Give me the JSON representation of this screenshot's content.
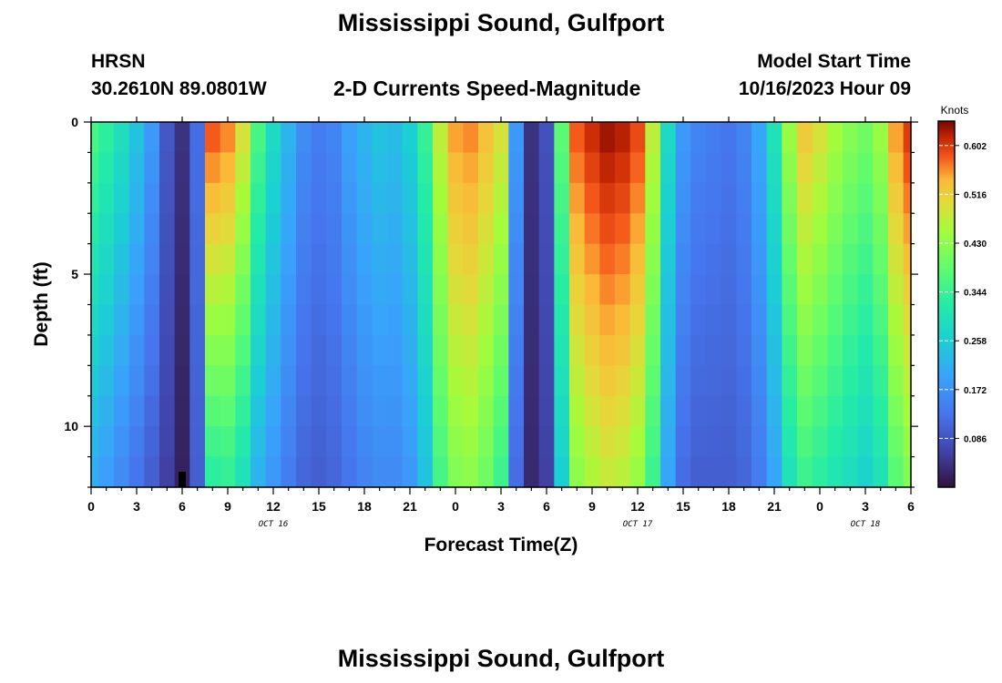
{
  "page": {
    "title": "Mississippi Sound, Gulfport",
    "title_repeat": "Mississippi Sound, Gulfport",
    "station_id": "HRSN",
    "station_coords": "30.2610N  89.0801W",
    "subtitle": "2-D Currents Speed-Magnitude",
    "model_label": "Model Start Time",
    "model_time": "10/16/2023 Hour 09"
  },
  "chart_data": {
    "type": "heatmap",
    "title": "2-D Currents Speed-Magnitude",
    "xlabel": "Forecast Time(Z)",
    "ylabel": "Depth (ft)",
    "x_range_hours": [
      0,
      54
    ],
    "y_range_ft": [
      0,
      12
    ],
    "y_inverted": true,
    "x_ticks": [
      {
        "hour": 0,
        "label": "0"
      },
      {
        "hour": 3,
        "label": "3"
      },
      {
        "hour": 6,
        "label": "6"
      },
      {
        "hour": 9,
        "label": "9"
      },
      {
        "hour": 12,
        "label": "12"
      },
      {
        "hour": 15,
        "label": "15"
      },
      {
        "hour": 18,
        "label": "18"
      },
      {
        "hour": 21,
        "label": "21"
      },
      {
        "hour": 24,
        "label": "0"
      },
      {
        "hour": 27,
        "label": "3"
      },
      {
        "hour": 30,
        "label": "6"
      },
      {
        "hour": 33,
        "label": "9"
      },
      {
        "hour": 36,
        "label": "12"
      },
      {
        "hour": 39,
        "label": "15"
      },
      {
        "hour": 42,
        "label": "18"
      },
      {
        "hour": 45,
        "label": "21"
      },
      {
        "hour": 48,
        "label": "0"
      },
      {
        "hour": 51,
        "label": "3"
      },
      {
        "hour": 54,
        "label": "6"
      }
    ],
    "date_labels": [
      {
        "hour": 12,
        "label": "OCT 16"
      },
      {
        "hour": 36,
        "label": "OCT 17"
      },
      {
        "hour": 51,
        "label": "OCT 18"
      }
    ],
    "y_ticks": [
      {
        "depth": 0,
        "label": "0"
      },
      {
        "depth": 5,
        "label": "5"
      },
      {
        "depth": 10,
        "label": "10"
      }
    ],
    "colorbar": {
      "unit": "Knots",
      "min": 0.0,
      "max": 0.645,
      "ticks": [
        "0.602",
        "0.516",
        "0.430",
        "0.344",
        "0.258",
        "0.172",
        "0.086"
      ],
      "tick_values": [
        0.602,
        0.516,
        0.43,
        0.344,
        0.258,
        0.172,
        0.086
      ]
    },
    "series": [
      {
        "name": "speed_knots",
        "description": "Current speed at each forecast hour (columns) and depth layer (rows, surface to bottom)",
        "x_hours": [
          0,
          1,
          2,
          3,
          4,
          5,
          6,
          7,
          8,
          9,
          10,
          11,
          12,
          13,
          14,
          15,
          16,
          17,
          18,
          19,
          20,
          21,
          22,
          23,
          24,
          25,
          26,
          27,
          28,
          29,
          30,
          31,
          32,
          33,
          34,
          35,
          36,
          37,
          38,
          39,
          40,
          41,
          42,
          43,
          44,
          45,
          46,
          47,
          48,
          49,
          50,
          51,
          52,
          53,
          54
        ],
        "depth_layers_ft": [
          0,
          1,
          2,
          3,
          4,
          5,
          6,
          7,
          8,
          9,
          10,
          11
        ],
        "surface_profile": [
          0.36,
          0.33,
          0.29,
          0.24,
          0.18,
          0.09,
          0.04,
          0.12,
          0.58,
          0.56,
          0.49,
          0.36,
          0.28,
          0.22,
          0.16,
          0.14,
          0.15,
          0.19,
          0.22,
          0.24,
          0.23,
          0.26,
          0.34,
          0.47,
          0.55,
          0.56,
          0.53,
          0.49,
          0.18,
          0.04,
          0.08,
          0.38,
          0.58,
          0.61,
          0.63,
          0.62,
          0.59,
          0.47,
          0.28,
          0.18,
          0.15,
          0.14,
          0.13,
          0.15,
          0.2,
          0.3,
          0.44,
          0.52,
          0.49,
          0.45,
          0.42,
          0.4,
          0.44,
          0.55,
          0.6
        ],
        "bottom_profile": [
          0.21,
          0.19,
          0.16,
          0.13,
          0.1,
          0.06,
          0.02,
          0.1,
          0.33,
          0.34,
          0.3,
          0.22,
          0.18,
          0.14,
          0.11,
          0.1,
          0.11,
          0.13,
          0.15,
          0.16,
          0.16,
          0.18,
          0.24,
          0.36,
          0.42,
          0.43,
          0.4,
          0.35,
          0.12,
          0.03,
          0.06,
          0.26,
          0.43,
          0.46,
          0.48,
          0.47,
          0.44,
          0.35,
          0.2,
          0.12,
          0.1,
          0.1,
          0.1,
          0.11,
          0.14,
          0.2,
          0.3,
          0.35,
          0.33,
          0.31,
          0.29,
          0.27,
          0.3,
          0.38,
          0.42
        ]
      }
    ]
  }
}
